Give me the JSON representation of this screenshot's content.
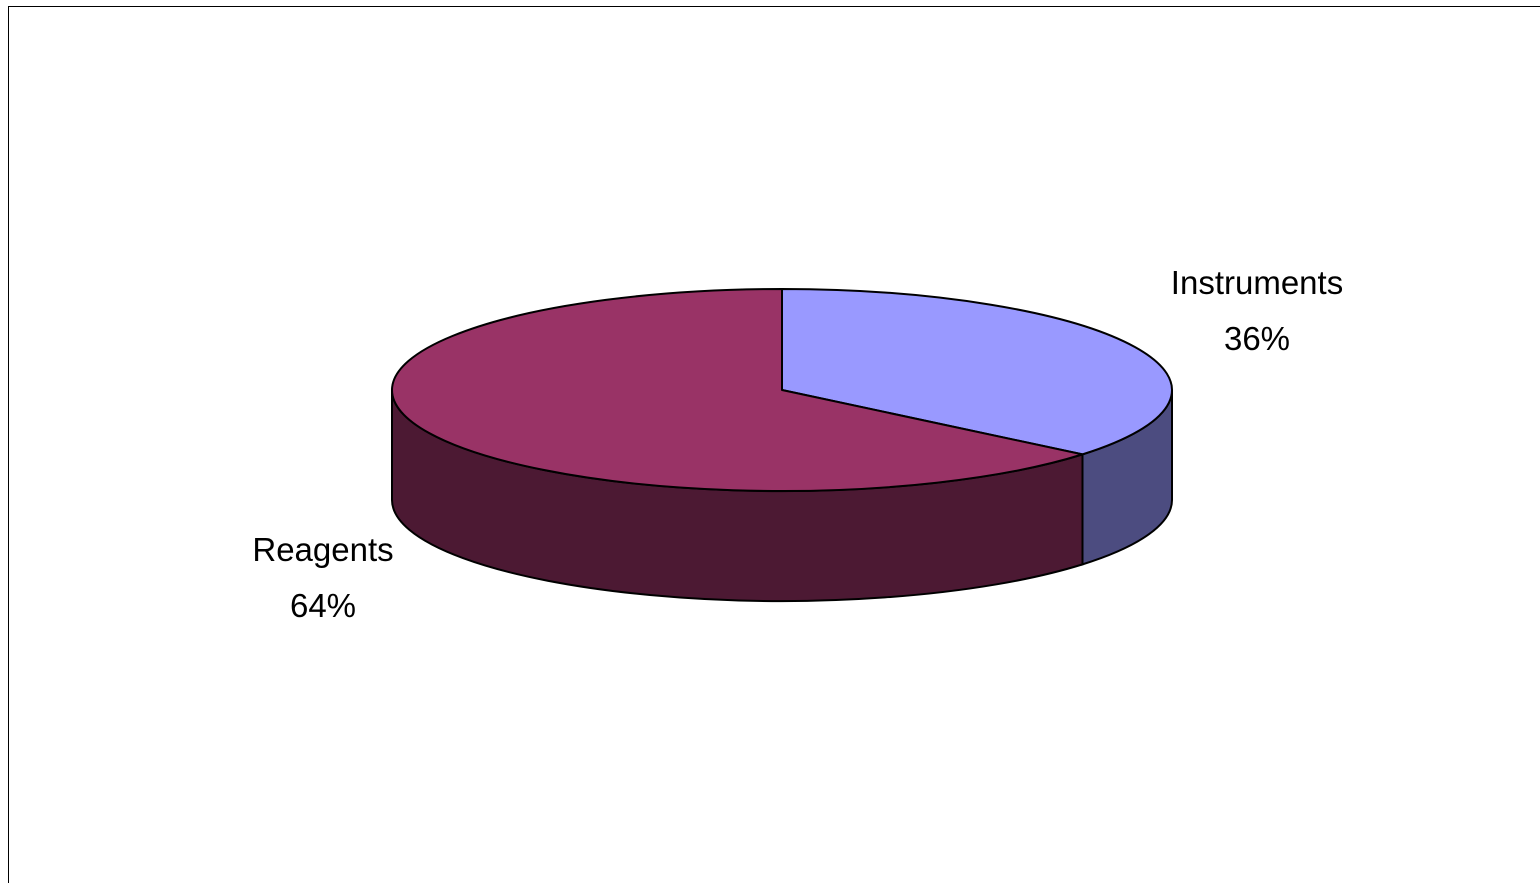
{
  "chart_data": {
    "type": "pie",
    "style": "3d",
    "title": "",
    "slices": [
      {
        "label": "Instruments",
        "value": 36,
        "percent_label": "36%",
        "color": "#9999ff",
        "side_color": "#4c4c80"
      },
      {
        "label": "Reagents",
        "value": 64,
        "percent_label": "64%",
        "color": "#993366",
        "side_color": "#4c1933"
      }
    ],
    "start_angle_deg": 90,
    "direction": "clockwise",
    "legend": "none"
  }
}
